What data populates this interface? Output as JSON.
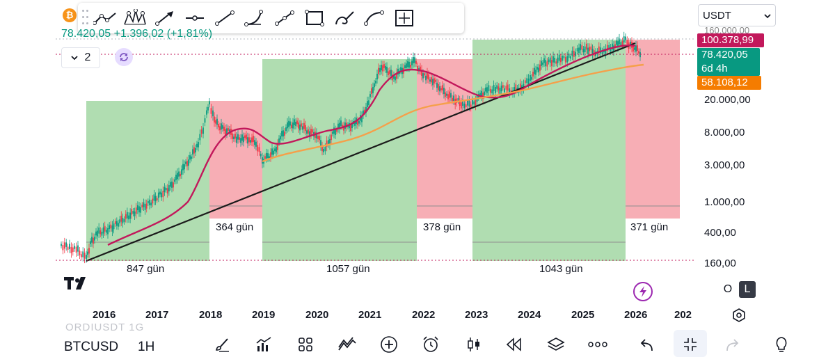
{
  "window": {
    "symbol_ghost": "ORDIUSDT 1G"
  },
  "header": {
    "coin_icon": "bitcoin-icon",
    "legend_text": "78.420,05  +1.396,02 (+1,81%)",
    "interval_value": "2",
    "currency": "USDT"
  },
  "drawing_tools": [
    {
      "name": "trend-angle-icon"
    },
    {
      "name": "pattern-icon"
    },
    {
      "name": "arrow-icon"
    },
    {
      "name": "horizontal-ray-icon"
    },
    {
      "name": "trend-line-icon"
    },
    {
      "name": "arc-icon"
    },
    {
      "name": "path-icon"
    },
    {
      "name": "rectangle-icon"
    },
    {
      "name": "brush-icon"
    },
    {
      "name": "curve-icon"
    },
    {
      "name": "date-price-range-icon"
    }
  ],
  "price_tags": {
    "ma_fast": "100.378,99",
    "last_price": "78.420,05",
    "countdown": "6d 4h",
    "ma_slow": "58.108,12"
  },
  "y_ticks": [
    "160.000,00",
    "20.000,00",
    "8.000,00",
    "3.000,00",
    "1.000,00",
    "400,00",
    "160,00"
  ],
  "x_ticks": [
    "2016",
    "2017",
    "2018",
    "2019",
    "2020",
    "2021",
    "2022",
    "2023",
    "2024",
    "2025",
    "2026",
    "202"
  ],
  "ranges": [
    {
      "label": "847 gün",
      "color": "green"
    },
    {
      "label": "364 gün",
      "color": "red"
    },
    {
      "label": "1057 gün",
      "color": "green"
    },
    {
      "label": "378 gün",
      "color": "red"
    },
    {
      "label": "1043 gün",
      "color": "green"
    },
    {
      "label": "371 gün",
      "color": "red"
    }
  ],
  "scale_modes": {
    "o": "O",
    "l": "L"
  },
  "bottom": {
    "symbol": "BTCUSD",
    "timeframe": "1H",
    "icons": [
      "brush-icon",
      "indicators-icon",
      "layout-grid-icon",
      "compare-icon",
      "add-icon",
      "alarm-icon",
      "candles-icon",
      "replay-icon",
      "layers-icon",
      "more-icon",
      "undo-icon",
      "fullscreen-exit-icon",
      "redo-icon",
      "idea-icon"
    ]
  },
  "colors": {
    "green_range": "#a7d9a8",
    "red_range": "#f6a5ad",
    "ma_fast": "#c2185b",
    "ma_slow": "#f5a04a",
    "trend": "#1b1b1b",
    "candle_up": "#089981",
    "candle_down": "#f23645"
  }
}
